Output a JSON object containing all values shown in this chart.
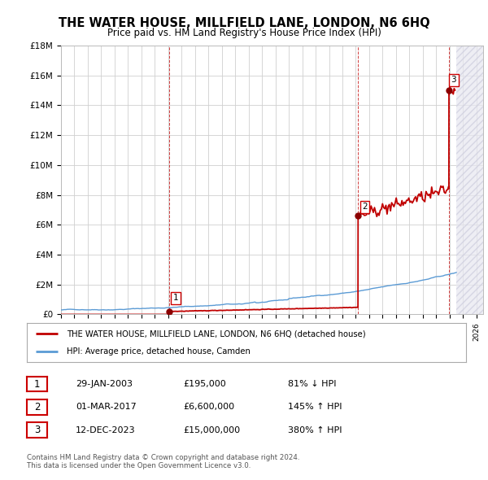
{
  "title": "THE WATER HOUSE, MILLFIELD LANE, LONDON, N6 6HQ",
  "subtitle": "Price paid vs. HM Land Registry's House Price Index (HPI)",
  "title_fontsize": 10.5,
  "subtitle_fontsize": 8.5,
  "ylim": [
    0,
    18000000
  ],
  "yticks": [
    0,
    2000000,
    4000000,
    6000000,
    8000000,
    10000000,
    12000000,
    14000000,
    16000000,
    18000000
  ],
  "ytick_labels": [
    "£0",
    "£2M",
    "£4M",
    "£6M",
    "£8M",
    "£10M",
    "£12M",
    "£14M",
    "£16M",
    "£18M"
  ],
  "xlim_start": 1995.0,
  "xlim_end": 2026.5,
  "xtick_years": [
    1995,
    1996,
    1997,
    1998,
    1999,
    2000,
    2001,
    2002,
    2003,
    2004,
    2005,
    2006,
    2007,
    2008,
    2009,
    2010,
    2011,
    2012,
    2013,
    2014,
    2015,
    2016,
    2017,
    2018,
    2019,
    2020,
    2021,
    2022,
    2023,
    2024,
    2025,
    2026
  ],
  "property_color": "#c00000",
  "hpi_color": "#5b9bd5",
  "sale_marker_color": "#8b0000",
  "grid_color": "#d0d0d0",
  "background_color": "#ffffff",
  "sales": [
    {
      "date_num": 2003.08,
      "price": 195000,
      "label": "1"
    },
    {
      "date_num": 2017.17,
      "price": 6600000,
      "label": "2"
    },
    {
      "date_num": 2023.95,
      "price": 15000000,
      "label": "3"
    }
  ],
  "legend_property_label": "THE WATER HOUSE, MILLFIELD LANE, LONDON, N6 6HQ (detached house)",
  "legend_hpi_label": "HPI: Average price, detached house, Camden",
  "table_rows": [
    {
      "num": "1",
      "date": "29-JAN-2003",
      "price": "£195,000",
      "hpi": "81% ↓ HPI"
    },
    {
      "num": "2",
      "date": "01-MAR-2017",
      "price": "£6,600,000",
      "hpi": "145% ↑ HPI"
    },
    {
      "num": "3",
      "date": "12-DEC-2023",
      "price": "£15,000,000",
      "hpi": "380% ↑ HPI"
    }
  ],
  "footer": "Contains HM Land Registry data © Crown copyright and database right 2024.\nThis data is licensed under the Open Government Licence v3.0.",
  "future_hatch_start": 2024.5,
  "future_hatch_end": 2026.5
}
